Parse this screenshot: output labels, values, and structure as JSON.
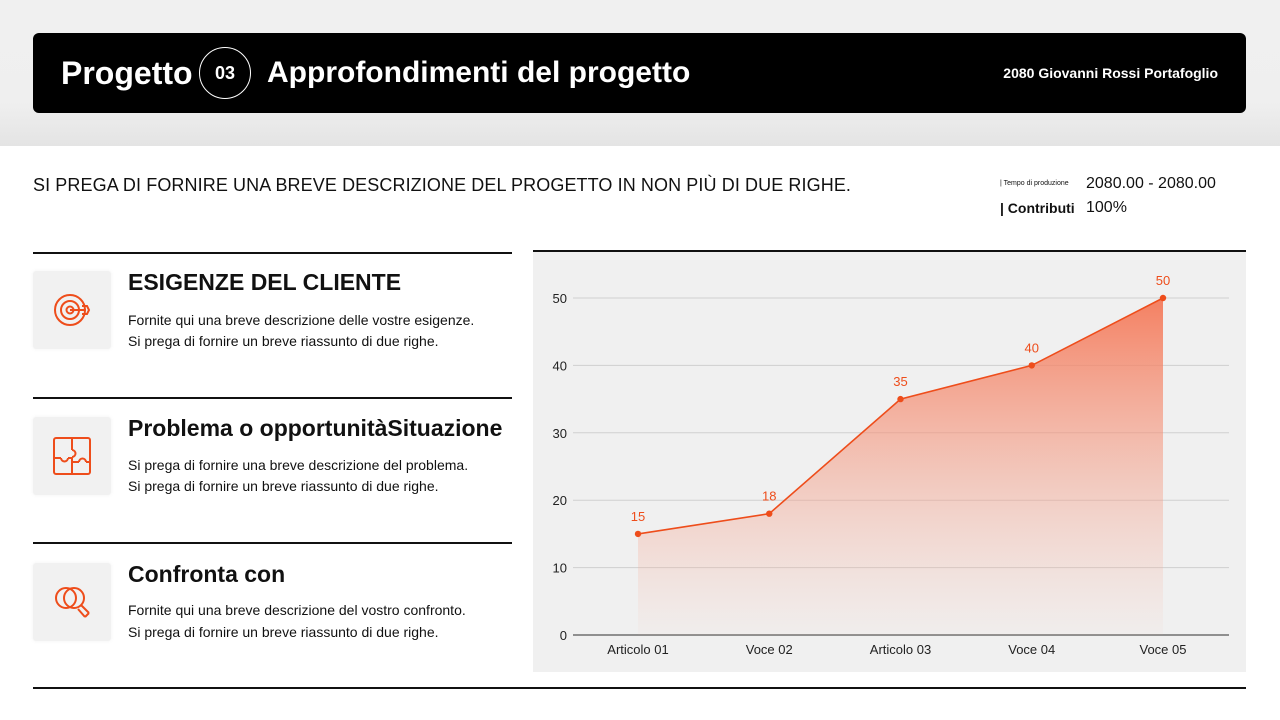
{
  "header": {
    "word": "Progetto",
    "number": "03",
    "title": "Approfondimenti del progetto",
    "portfolio": "2080 Giovanni Rossi Portafoglio"
  },
  "description": "SI PREGA DI FORNIRE UNA BREVE DESCRIZIONE DEL PROGETTO IN NON PIÙ DI DUE RIGHE.",
  "meta": {
    "production_label": "| Tempo di produzione",
    "production_value": "2080.00 - 2080.00",
    "contrib_label": "| Contributi",
    "contrib_value": "100%"
  },
  "items": [
    {
      "icon": "target-icon",
      "title": "ESIGENZE DEL CLIENTE",
      "line1": "Fornite qui una breve descrizione delle vostre esigenze.",
      "line2": "Si prega di fornire un breve riassunto di due righe."
    },
    {
      "icon": "puzzle-icon",
      "title": "Problema o opportunitàSituazione",
      "line1": "Si prega di fornire una breve descrizione del problema.",
      "line2": "Si prega di fornire un breve riassunto di due righe."
    },
    {
      "icon": "search-compare-icon",
      "title": "Confronta con",
      "line1": "Fornite qui una breve descrizione del vostro confronto.",
      "line2": "Si prega di fornire un breve riassunto di due righe."
    }
  ],
  "colors": {
    "accent": "#ee4d1b",
    "panel": "#f0f0f0"
  },
  "chart_data": {
    "type": "area",
    "categories": [
      "Articolo 01",
      "Voce 02",
      "Articolo 03",
      "Voce 04",
      "Voce 05"
    ],
    "values": [
      15,
      18,
      35,
      40,
      50
    ],
    "data_labels": [
      "15",
      "18",
      "35",
      "40",
      "50"
    ],
    "yticks": [
      "0",
      "10",
      "20",
      "30",
      "40",
      "50"
    ],
    "ylim": [
      0,
      50
    ],
    "grid": true,
    "legend": "none"
  }
}
